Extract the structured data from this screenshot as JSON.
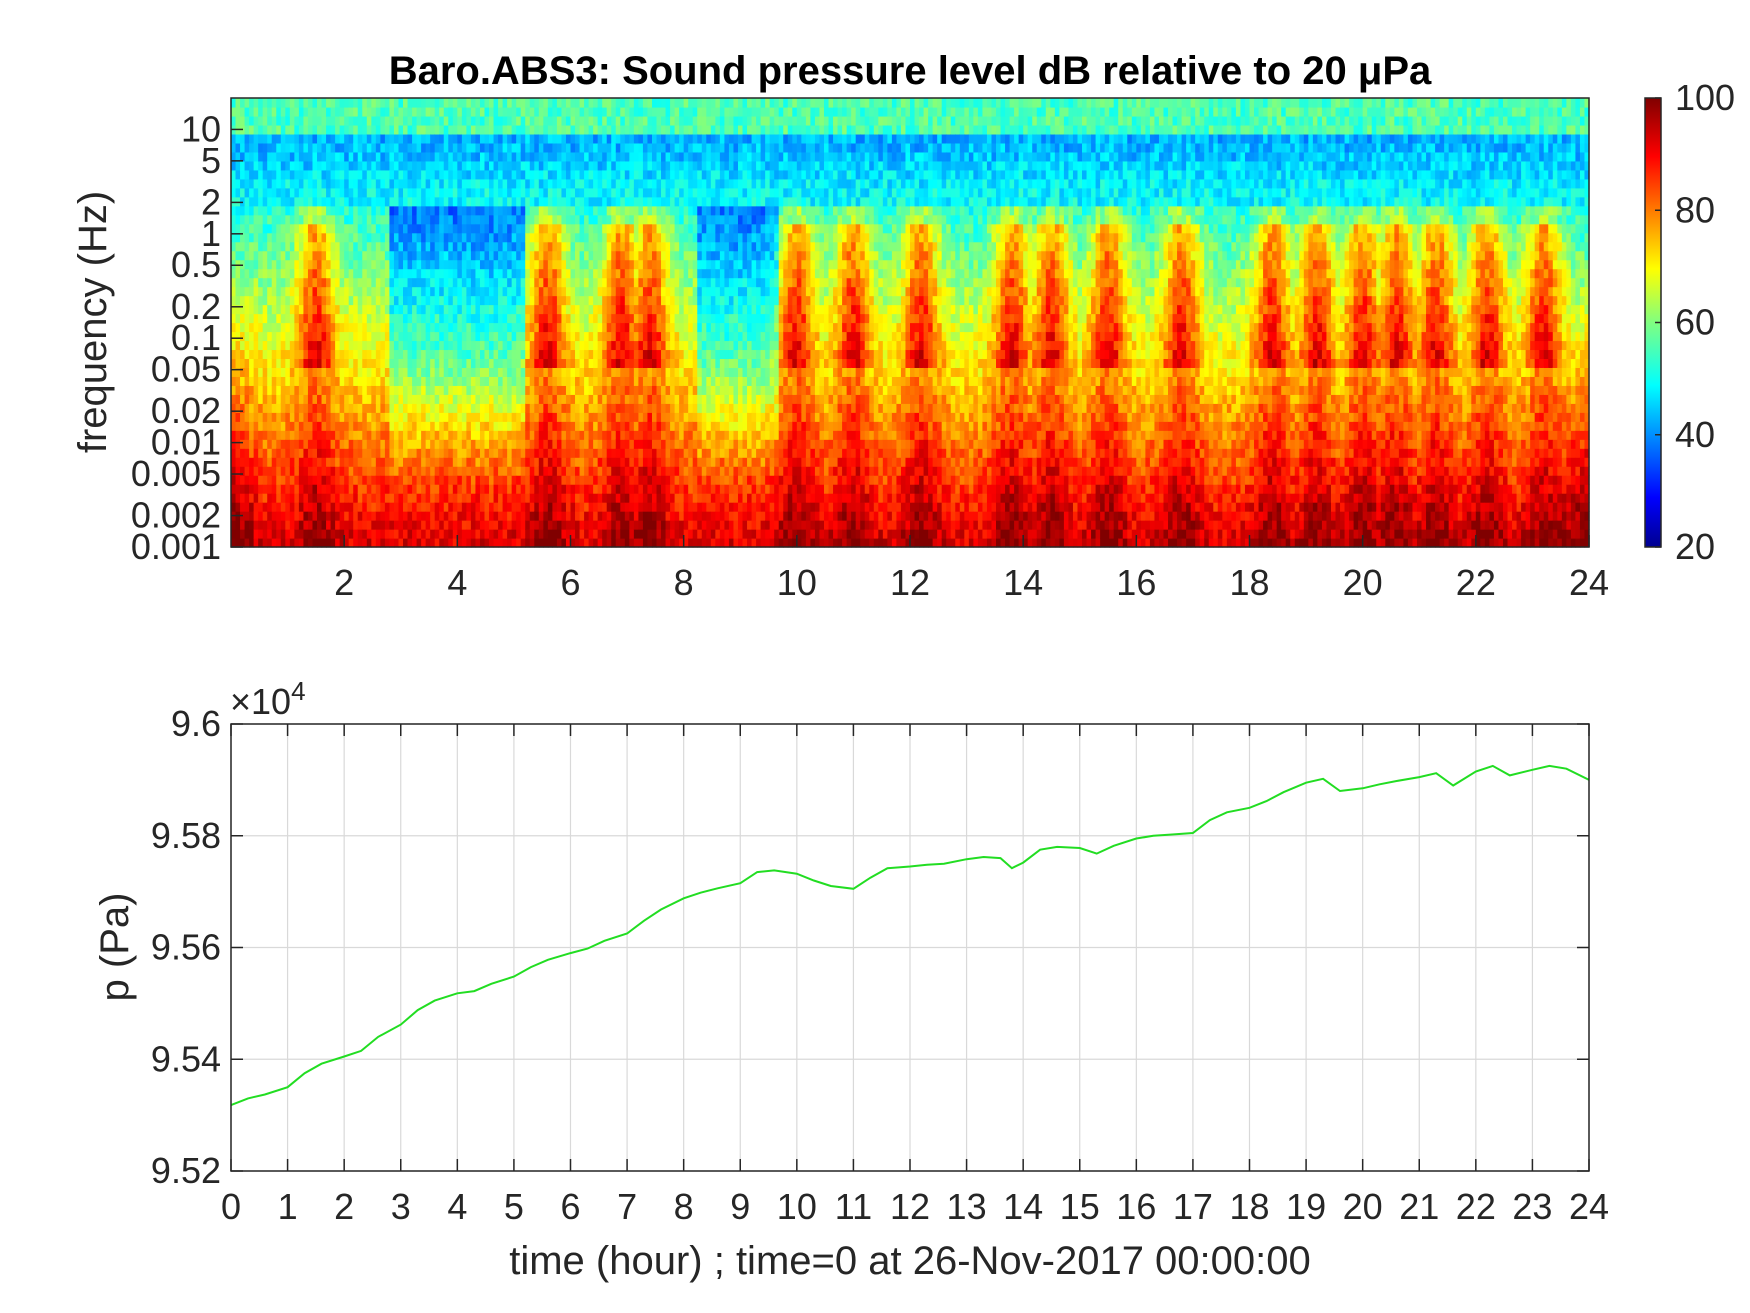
{
  "figure": {
    "title": "Baro.ABS3: Sound pressure level dB relative to 20 μPa"
  },
  "chart_data": [
    {
      "type": "heatmap",
      "title": "Baro.ABS3: Sound pressure level dB relative to 20 μPa",
      "ylabel": "frequency (Hz)",
      "xlabel": "",
      "xlim": [
        0,
        24
      ],
      "ylim": [
        0.001,
        20
      ],
      "yscale": "log",
      "x_ticks": [
        "2",
        "4",
        "6",
        "8",
        "10",
        "12",
        "14",
        "16",
        "18",
        "20",
        "22",
        "24"
      ],
      "x_tick_values": [
        2,
        4,
        6,
        8,
        10,
        12,
        14,
        16,
        18,
        20,
        22,
        24
      ],
      "y_ticks": [
        "10",
        "5",
        "2",
        "1",
        "0.5",
        "0.2",
        "0.1",
        "0.05",
        "0.02",
        "0.01",
        "0.005",
        "0.002",
        "0.001"
      ],
      "y_tick_values": [
        10,
        5,
        2,
        1,
        0.5,
        0.2,
        0.1,
        0.05,
        0.02,
        0.01,
        0.005,
        0.002,
        0.001
      ],
      "colorbar": {
        "range": [
          20,
          100
        ],
        "ticks": [
          "100",
          "80",
          "60",
          "40",
          "20"
        ],
        "tick_values": [
          100,
          80,
          60,
          40,
          20
        ],
        "colormap": "jet"
      },
      "activity_peaks_hours": [
        1.5,
        5.6,
        6.9,
        7.4,
        10.0,
        11.0,
        12.2,
        13.8,
        14.5,
        15.5,
        16.8,
        18.4,
        19.2,
        20.0,
        20.6,
        21.3,
        22.2,
        23.2
      ],
      "quiet_bands_hours": [
        [
          2.8,
          5.2
        ],
        [
          8.2,
          9.7
        ]
      ],
      "grid": false
    },
    {
      "type": "line",
      "xlabel": "time (hour) ; time=0 at 26-Nov-2017 00:00:00",
      "ylabel": "p (Pa)",
      "exponent_label": "×10",
      "exponent_power": "4",
      "xlim": [
        0,
        24
      ],
      "ylim": [
        95200,
        96000
      ],
      "x_ticks": [
        "0",
        "1",
        "2",
        "3",
        "4",
        "5",
        "6",
        "7",
        "8",
        "9",
        "10",
        "11",
        "12",
        "13",
        "14",
        "15",
        "16",
        "17",
        "18",
        "19",
        "20",
        "21",
        "22",
        "23",
        "24"
      ],
      "y_ticks": [
        "9.6",
        "9.58",
        "9.56",
        "9.54",
        "9.52"
      ],
      "y_tick_values": [
        96000,
        95800,
        95600,
        95400,
        95200
      ],
      "grid": true,
      "series": [
        {
          "color": "#22dd22",
          "x": [
            0,
            0.3,
            0.6,
            1.0,
            1.3,
            1.6,
            2.0,
            2.3,
            2.6,
            3.0,
            3.3,
            3.6,
            4.0,
            4.3,
            4.6,
            5.0,
            5.3,
            5.6,
            6.0,
            6.3,
            6.6,
            7.0,
            7.3,
            7.6,
            8.0,
            8.3,
            8.6,
            9.0,
            9.3,
            9.6,
            10.0,
            10.3,
            10.6,
            11.0,
            11.3,
            11.6,
            12.0,
            12.3,
            12.6,
            13.0,
            13.3,
            13.6,
            13.8,
            14.0,
            14.3,
            14.6,
            15.0,
            15.3,
            15.6,
            16.0,
            16.3,
            16.6,
            17.0,
            17.3,
            17.6,
            18.0,
            18.3,
            18.6,
            19.0,
            19.3,
            19.6,
            20.0,
            20.3,
            20.6,
            21.0,
            21.3,
            21.6,
            22.0,
            22.3,
            22.6,
            23.0,
            23.3,
            23.6,
            24.0
          ],
          "y": [
            95318,
            95330,
            95337,
            95350,
            95375,
            95392,
            95405,
            95415,
            95440,
            95462,
            95488,
            95505,
            95518,
            95522,
            95535,
            95548,
            95565,
            95578,
            95590,
            95598,
            95612,
            95625,
            95648,
            95668,
            95688,
            95698,
            95706,
            95715,
            95735,
            95738,
            95732,
            95720,
            95710,
            95705,
            95725,
            95742,
            95745,
            95748,
            95750,
            95758,
            95762,
            95760,
            95742,
            95752,
            95775,
            95780,
            95778,
            95768,
            95782,
            95795,
            95800,
            95802,
            95805,
            95828,
            95842,
            95850,
            95862,
            95878,
            95895,
            95902,
            95880,
            95885,
            95892,
            95898,
            95905,
            95912,
            95890,
            95915,
            95925,
            95908,
            95918,
            95925,
            95920,
            95900
          ]
        }
      ]
    }
  ]
}
